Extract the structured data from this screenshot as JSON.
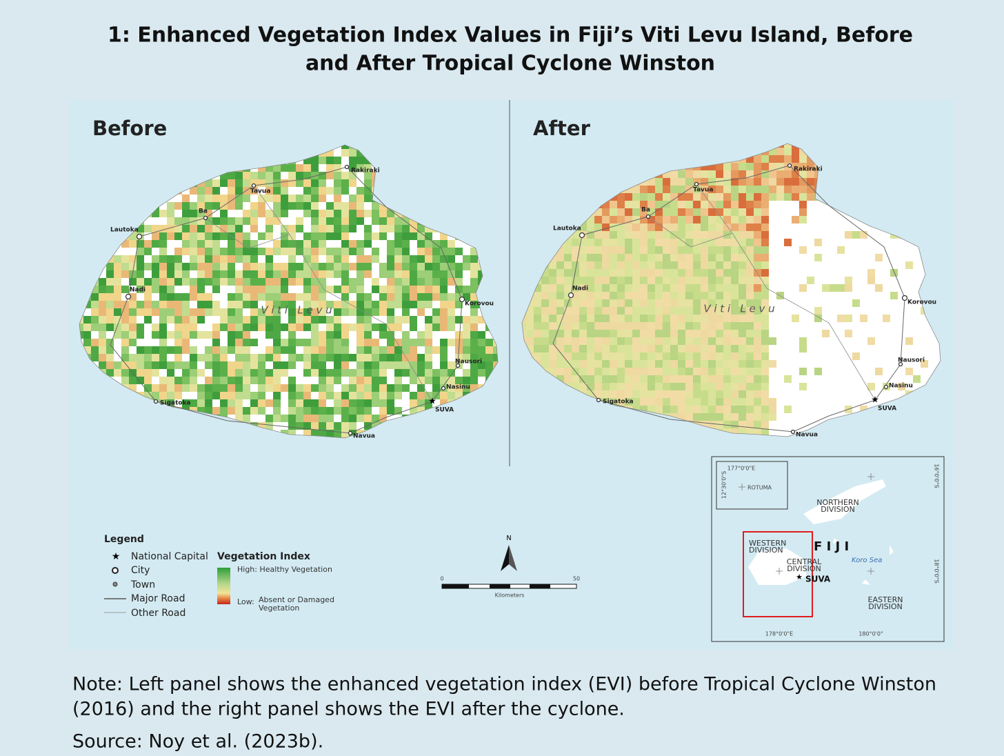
{
  "header": {
    "title_line1": "1: Enhanced Vegetation Index Values in Fiji’s Viti Levu Island, Before",
    "title_line2": "and After Tropical Cyclone Winston"
  },
  "panels": [
    {
      "label": "Before"
    },
    {
      "label": "After"
    }
  ],
  "island_name": "V i t i   L e v u",
  "places": [
    "Rakiraki",
    "Tavua",
    "Ba",
    "Lautoka",
    "Nadi",
    "Korovou",
    "Nausori",
    "Nasinu",
    "SUVA",
    "Sigatoka",
    "Navua"
  ],
  "legend": {
    "title": "Legend",
    "symbols": [
      "National Capital",
      "City",
      "Town",
      "Major Road",
      "Other Road"
    ],
    "index_title": "Vegetation Index",
    "high": "High: Healthy Vegetation",
    "low_prefix": "Low:",
    "low_line1": "Absent or Damaged",
    "low_line2": "Vegetation"
  },
  "scale_bar": {
    "north": "N",
    "start": "0",
    "end": "50",
    "unit": "Kilometers"
  },
  "inset": {
    "lon_top": "177°0'0\"E",
    "lat_left": "12°30'0\"S",
    "rotuma": "ROTUMA",
    "northern_1": "NORTHERN",
    "northern_2": "DIVISION",
    "western_1": "WESTERN",
    "western_2": "DIVISION",
    "central_1": "CENTRAL",
    "central_2": "DIVISION",
    "country": "F I J I",
    "sea": "Koro Sea",
    "capital": "SUVA",
    "eastern_1": "EASTERN",
    "eastern_2": "DIVISION",
    "lon_bottom_1": "178°0'0\"E",
    "lon_bottom_2": "180°0'0\"",
    "lat_right_1": "16°0'0\"S",
    "lat_right_2": "18°0'0\"S"
  },
  "note": {
    "line1": "Note: Left panel shows the enhanced vegetation index (EVI) before Tropical Cyclone Winston",
    "line2": "(2016) and the right panel shows the EVI after the cyclone."
  },
  "source": "Source: Noy et al. (2023b)."
}
